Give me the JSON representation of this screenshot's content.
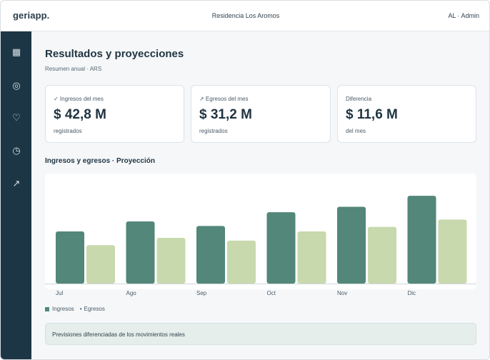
{
  "header": {
    "logo": "geriapp.",
    "residence": "Residencia Los Aromos",
    "user": "AL · Admin"
  },
  "sidebar": {
    "items": [
      {
        "icon": "grid-icon",
        "glyph": "▦"
      },
      {
        "icon": "target-icon",
        "glyph": "◎"
      },
      {
        "icon": "heart-icon",
        "glyph": "♡"
      },
      {
        "icon": "clock-icon",
        "glyph": "◷"
      },
      {
        "icon": "trend-arrow-icon",
        "glyph": "↗"
      }
    ]
  },
  "page": {
    "title": "Resultados y proyecciones",
    "subtitle": "Resumen anual · ARS"
  },
  "cards": [
    {
      "label": "✓ Ingresos del mes",
      "value": "$ 42,8 M",
      "note": "registrados"
    },
    {
      "label": "↗ Egresos del mes",
      "value": "$ 31,2 M",
      "note": "registrados"
    },
    {
      "label": "Diferencia",
      "value": "$ 11,6 M",
      "note": "del mes"
    }
  ],
  "section": {
    "title": "Ingresos y egresos · Proyección"
  },
  "chart_data": {
    "type": "bar",
    "categories": [
      "Jul",
      "Ago",
      "Sep",
      "Oct",
      "Nov",
      "Dic"
    ],
    "series": [
      {
        "name": "Ingresos",
        "values": [
          57,
          68,
          63,
          78,
          84,
          96
        ],
        "color": "#52877a"
      },
      {
        "name": "Egresos",
        "values": [
          42,
          50,
          47,
          57,
          62,
          70
        ],
        "color": "#c8d9ad"
      }
    ],
    "ylim": [
      0,
      100
    ],
    "grid": false,
    "legend": "bottom-left"
  },
  "legend": {
    "ingresos": "Ingresos",
    "egresos": "Egresos",
    "ingresos_color": "#52877a",
    "egresos_color": "#c8d9ad"
  },
  "note": {
    "text": "Previsiones diferenciadas de los movimientos reales"
  }
}
